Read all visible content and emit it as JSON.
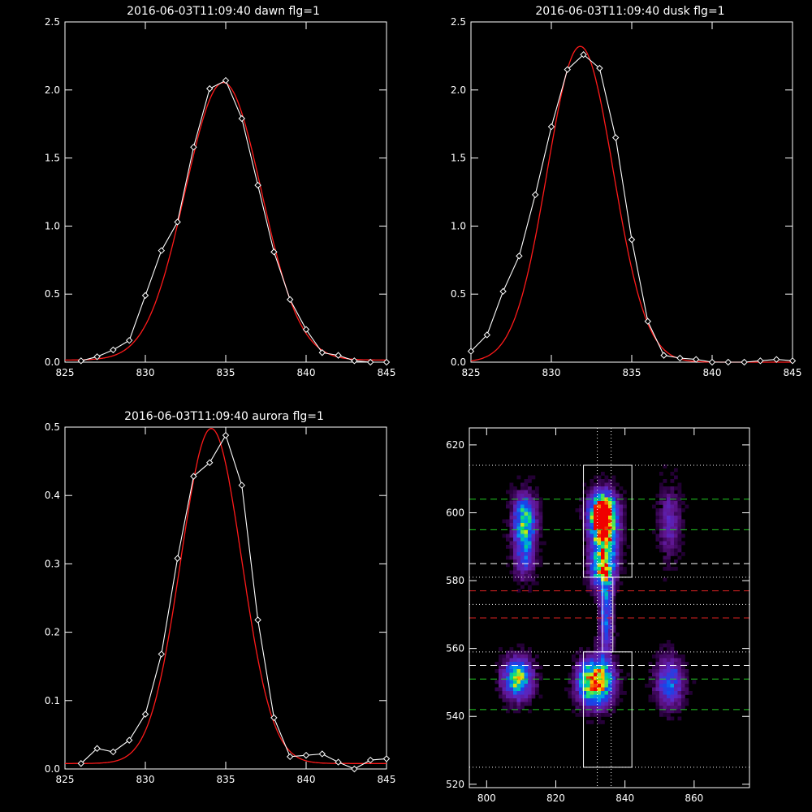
{
  "colors": {
    "background": "#000000",
    "axes": "#ffffff",
    "data": "#ffffff",
    "fit": "#ff1a1a",
    "green_line": "#22cc22",
    "red_line": "#dd2222"
  },
  "chart_data": [
    {
      "type": "line",
      "title": "2016-06-03T11:09:40 dawn flg=1",
      "xlim": [
        825,
        845
      ],
      "ylim": [
        0,
        2.5
      ],
      "xticks": [
        825,
        830,
        835,
        840,
        845
      ],
      "yticks": [
        0.0,
        0.5,
        1.0,
        1.5,
        2.0,
        2.5
      ],
      "ytick_labels": [
        "0.0",
        "0.5",
        "1.0",
        "1.5",
        "2.0",
        "2.5"
      ],
      "series": [
        {
          "role": "data",
          "marker": "diamond",
          "x": [
            826,
            827,
            828,
            829,
            830,
            831,
            832,
            833,
            834,
            835,
            836,
            837,
            838,
            839,
            840,
            841,
            842,
            843,
            844,
            845
          ],
          "y": [
            0.01,
            0.04,
            0.09,
            0.16,
            0.49,
            0.82,
            1.03,
            1.58,
            2.01,
            2.07,
            1.79,
            1.3,
            0.81,
            0.46,
            0.24,
            0.07,
            0.05,
            0.01,
            -0.02,
            0.0
          ]
        },
        {
          "role": "fit",
          "shape": "gaussian",
          "center": 834.85,
          "amplitude": 2.04,
          "sigma": 2.38,
          "baseline": 0.015
        }
      ]
    },
    {
      "type": "line",
      "title": "2016-06-03T11:09:40 dusk flg=1",
      "xlim": [
        825,
        845
      ],
      "ylim": [
        0,
        2.5
      ],
      "xticks": [
        825,
        830,
        835,
        840,
        845
      ],
      "yticks": [
        0.0,
        0.5,
        1.0,
        1.5,
        2.0,
        2.5
      ],
      "ytick_labels": [
        "0.0",
        "0.5",
        "1.0",
        "1.5",
        "2.0",
        "2.5"
      ],
      "series": [
        {
          "role": "data",
          "marker": "diamond",
          "x": [
            825,
            826,
            827,
            828,
            829,
            830,
            831,
            832,
            833,
            834,
            835,
            836,
            837,
            838,
            839,
            840,
            841,
            842,
            843,
            844,
            845
          ],
          "y": [
            0.08,
            0.2,
            0.52,
            0.78,
            1.23,
            1.73,
            2.15,
            2.26,
            2.16,
            1.65,
            0.9,
            0.3,
            0.05,
            0.03,
            0.02,
            0.0,
            -0.01,
            -0.01,
            0.01,
            0.02,
            0.01
          ]
        },
        {
          "role": "fit",
          "shape": "gaussian",
          "center": 831.8,
          "amplitude": 2.32,
          "sigma": 2.05,
          "baseline": 0.0
        }
      ]
    },
    {
      "type": "line",
      "title": "2016-06-03T11:09:40 aurora flg=1",
      "xlim": [
        825,
        845
      ],
      "ylim": [
        0,
        0.5
      ],
      "xticks": [
        825,
        830,
        835,
        840,
        845
      ],
      "yticks": [
        0.0,
        0.1,
        0.2,
        0.3,
        0.4,
        0.5
      ],
      "ytick_labels": [
        "0.0",
        "0.1",
        "0.2",
        "0.3",
        "0.4",
        "0.5"
      ],
      "series": [
        {
          "role": "data",
          "marker": "diamond",
          "x": [
            826,
            827,
            828,
            829,
            830,
            831,
            832,
            833,
            834,
            835,
            836,
            837,
            838,
            839,
            840,
            841,
            842,
            843,
            844,
            845
          ],
          "y": [
            0.008,
            0.03,
            0.025,
            0.042,
            0.08,
            0.168,
            0.308,
            0.428,
            0.448,
            0.488,
            0.415,
            0.218,
            0.075,
            0.018,
            0.02,
            0.022,
            0.01,
            -0.003,
            0.013,
            0.015
          ]
        },
        {
          "role": "fit",
          "shape": "gaussian",
          "center": 834.1,
          "amplitude": 0.49,
          "sigma": 1.9,
          "baseline": 0.008
        }
      ]
    },
    {
      "type": "heatmap",
      "xlim": [
        795,
        876
      ],
      "ylim": [
        519,
        625
      ],
      "xticks": [
        800,
        820,
        840,
        860
      ],
      "yticks": [
        520,
        540,
        560,
        580,
        600,
        620
      ],
      "ytick_labels": [
        "520",
        "540",
        "560",
        "580",
        "600",
        "620"
      ],
      "blobs": [
        {
          "x": 833.5,
          "y": 600,
          "sx": 2.6,
          "sy": 4,
          "amp": 1.0
        },
        {
          "x": 834,
          "y": 593,
          "sx": 2.5,
          "sy": 6,
          "amp": 0.78
        },
        {
          "x": 833.5,
          "y": 583,
          "sx": 2.3,
          "sy": 3.5,
          "amp": 0.65
        },
        {
          "x": 834.5,
          "y": 570,
          "sx": 1.3,
          "sy": 9,
          "amp": 0.45
        },
        {
          "x": 831.5,
          "y": 550,
          "sx": 3.2,
          "sy": 4.5,
          "amp": 1.05
        },
        {
          "x": 811,
          "y": 598,
          "sx": 2.3,
          "sy": 5,
          "amp": 0.62
        },
        {
          "x": 811,
          "y": 588,
          "sx": 2,
          "sy": 5,
          "amp": 0.38
        },
        {
          "x": 809,
          "y": 551,
          "sx": 2.8,
          "sy": 4,
          "amp": 0.72
        },
        {
          "x": 853,
          "y": 597,
          "sx": 2.2,
          "sy": 7,
          "amp": 0.25
        },
        {
          "x": 853,
          "y": 550,
          "sx": 2.6,
          "sy": 5,
          "amp": 0.45
        }
      ],
      "boxes": [
        {
          "x0": 828,
          "x1": 842,
          "y0": 581,
          "y1": 614
        },
        {
          "x0": 828,
          "x1": 842,
          "y0": 525,
          "y1": 559
        },
        {
          "x0": 833.5,
          "x1": 836.5,
          "y0": 559,
          "y1": 581
        }
      ],
      "hlines": [
        {
          "y": 604,
          "color": "green",
          "style": "dashed"
        },
        {
          "y": 595,
          "color": "green",
          "style": "dashed"
        },
        {
          "y": 585,
          "color": "white",
          "style": "dashed"
        },
        {
          "y": 577,
          "color": "red",
          "style": "dashed"
        },
        {
          "y": 569,
          "color": "red",
          "style": "dashed"
        },
        {
          "y": 555,
          "color": "white",
          "style": "dashed"
        },
        {
          "y": 551,
          "color": "green",
          "style": "dashed"
        },
        {
          "y": 542,
          "color": "green",
          "style": "dashed"
        },
        {
          "y": 614,
          "color": "white",
          "style": "dotted"
        },
        {
          "y": 581,
          "color": "white",
          "style": "dotted"
        },
        {
          "y": 573,
          "color": "white",
          "style": "dotted"
        },
        {
          "y": 559,
          "color": "white",
          "style": "dotted"
        },
        {
          "y": 525,
          "color": "white",
          "style": "dotted"
        }
      ],
      "vlines": [
        {
          "x": 832,
          "color": "white",
          "style": "dotted"
        },
        {
          "x": 836,
          "color": "white",
          "style": "dotted"
        }
      ]
    }
  ]
}
